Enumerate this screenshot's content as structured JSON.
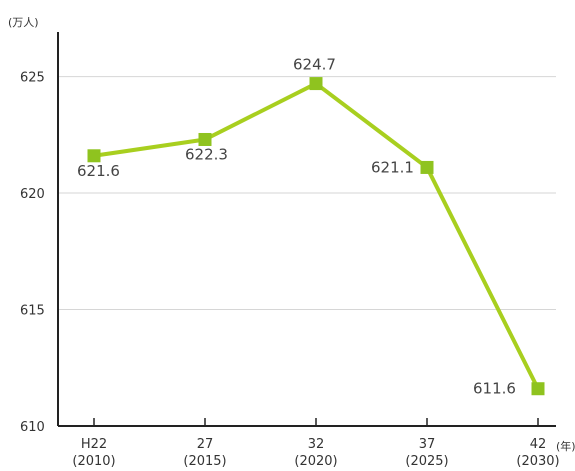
{
  "chart_data": {
    "type": "line",
    "y_unit": "(万人)",
    "x_unit": "(年)",
    "categories": [
      {
        "era": "H22",
        "year": "(2010)"
      },
      {
        "era": "27",
        "year": "(2015)"
      },
      {
        "era": "32",
        "year": "(2020)"
      },
      {
        "era": "37",
        "year": "(2025)"
      },
      {
        "era": "42",
        "year": "(2030)"
      }
    ],
    "series": [
      {
        "values": [
          621.6,
          622.3,
          624.7,
          621.1,
          611.6
        ],
        "labels": [
          "621.6",
          "622.3",
          "624.7",
          "621.1",
          "611.6"
        ]
      }
    ],
    "ylim": [
      610,
      627
    ],
    "yticks": [
      610,
      615,
      620,
      625
    ],
    "grid": true,
    "colors": {
      "line": "#a8cf1f",
      "marker": "#8fc31f",
      "grid": "#d6d6d6",
      "axis": "#222222"
    }
  }
}
